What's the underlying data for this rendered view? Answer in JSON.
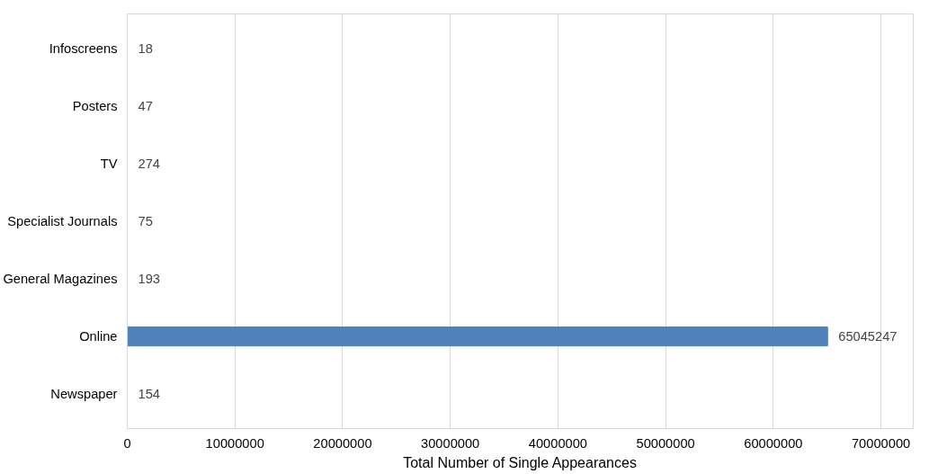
{
  "chart_data": {
    "type": "bar",
    "orientation": "horizontal",
    "xlabel": "Total Number of Single Appearances",
    "categories": [
      "Infoscreens",
      "Posters",
      "TV",
      "Specialist Journals",
      "General Magazines",
      "Online",
      "Newspaper"
    ],
    "values": [
      18,
      47,
      274,
      75,
      193,
      65045247,
      154
    ],
    "color": "#4f81bd",
    "xlim": [
      0,
      73000000
    ],
    "xticks": [
      0,
      10000000,
      20000000,
      30000000,
      40000000,
      50000000,
      60000000,
      70000000
    ],
    "grid": "x",
    "data_labels": true
  }
}
